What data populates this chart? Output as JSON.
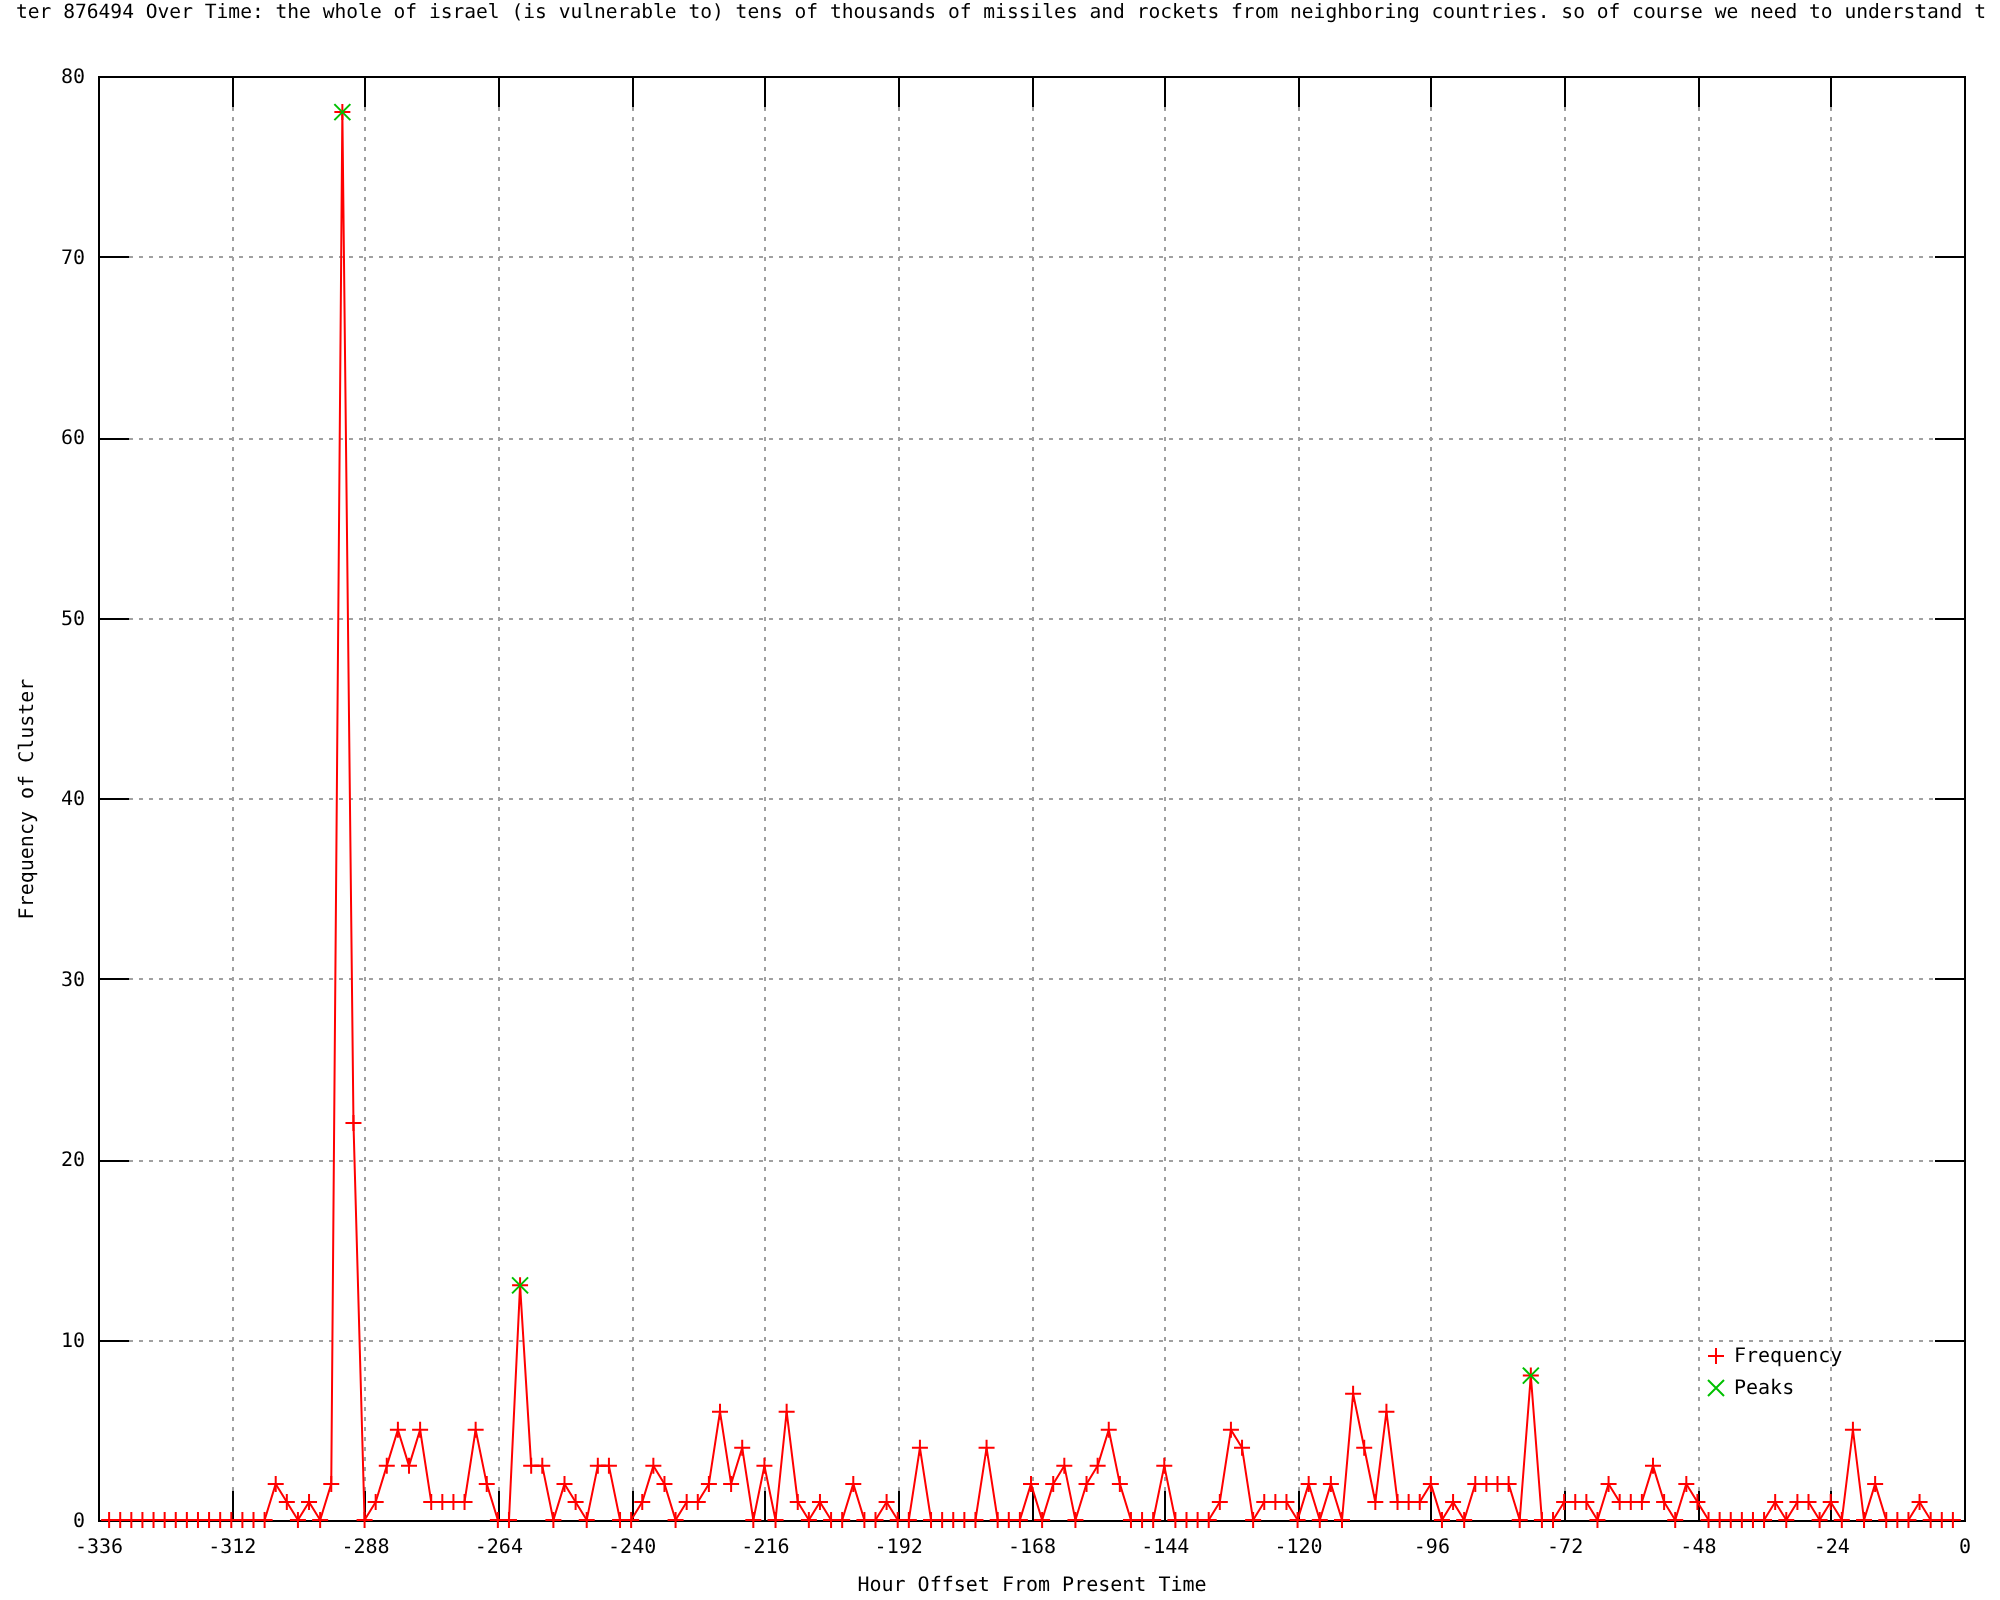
{
  "chart_data": {
    "type": "line",
    "title": "ter 876494 Over Time: the whole of israel (is vulnerable to) tens of thousands of missiles and rockets from neighboring countries. so of course we need to understand t",
    "xlabel": "Hour Offset From Present Time",
    "ylabel": "Frequency of Cluster",
    "x": [
      -334,
      -332,
      -330,
      -328,
      -326,
      -324,
      -322,
      -320,
      -318,
      -316,
      -314,
      -312,
      -310,
      -308,
      -306,
      -304,
      -302,
      -300,
      -298,
      -296,
      -294,
      -292,
      -290,
      -288,
      -286,
      -284,
      -282,
      -280,
      -278,
      -276,
      -274,
      -272,
      -270,
      -268,
      -266,
      -264,
      -262,
      -260,
      -258,
      -256,
      -254,
      -252,
      -250,
      -248,
      -246,
      -244,
      -242,
      -240,
      -238,
      -236,
      -234,
      -232,
      -230,
      -228,
      -226,
      -224,
      -222,
      -220,
      -218,
      -216,
      -214,
      -212,
      -210,
      -208,
      -206,
      -204,
      -202,
      -200,
      -198,
      -196,
      -194,
      -192,
      -190,
      -188,
      -186,
      -184,
      -182,
      -180,
      -178,
      -176,
      -174,
      -172,
      -170,
      -168,
      -166,
      -164,
      -162,
      -160,
      -158,
      -156,
      -154,
      -152,
      -150,
      -148,
      -146,
      -144,
      -142,
      -140,
      -138,
      -136,
      -134,
      -132,
      -130,
      -128,
      -126,
      -124,
      -122,
      -120,
      -118,
      -116,
      -114,
      -112,
      -110,
      -108,
      -106,
      -104,
      -102,
      -100,
      -98,
      -96,
      -94,
      -92,
      -90,
      -88,
      -86,
      -84,
      -82,
      -80,
      -78,
      -76,
      -74,
      -72,
      -70,
      -68,
      -66,
      -64,
      -62,
      -60,
      -58,
      -56,
      -54,
      -52,
      -50,
      -48,
      -46,
      -44,
      -42,
      -40,
      -38,
      -36,
      -34,
      -32,
      -30,
      -28,
      -26,
      -24,
      -22,
      -20,
      -18,
      -16,
      -14,
      -12,
      -10,
      -8,
      -6,
      -4,
      -2
    ],
    "series": [
      {
        "name": "Frequency",
        "color": "#ff0000",
        "values": [
          0,
          0,
          0,
          0,
          0,
          0,
          0,
          0,
          0,
          0,
          0,
          0,
          0,
          0,
          0,
          2,
          1,
          0,
          1,
          0,
          2,
          78,
          22,
          0,
          1,
          3,
          5,
          3,
          5,
          1,
          1,
          1,
          1,
          5,
          2,
          0,
          0,
          13,
          3,
          3,
          0,
          2,
          1,
          0,
          3,
          3,
          0,
          0,
          1,
          3,
          2,
          0,
          1,
          1,
          2,
          6,
          2,
          4,
          0,
          3,
          0,
          6,
          1,
          0,
          1,
          0,
          0,
          2,
          0,
          0,
          1,
          0,
          0,
          4,
          0,
          0,
          0,
          0,
          0,
          4,
          0,
          0,
          0,
          2,
          0,
          2,
          3,
          0,
          2,
          3,
          5,
          2,
          0,
          0,
          0,
          3,
          0,
          0,
          0,
          0,
          1,
          5,
          4,
          0,
          1,
          1,
          1,
          0,
          2,
          0,
          2,
          0,
          7,
          4,
          1,
          6,
          1,
          1,
          1,
          2,
          0,
          1,
          0,
          2,
          2,
          2,
          2,
          0,
          8,
          0,
          0,
          1,
          1,
          1,
          0,
          2,
          1,
          1,
          1,
          3,
          1,
          0,
          2,
          1,
          0,
          0,
          0,
          0,
          0,
          0,
          1,
          0,
          1,
          1,
          0,
          1,
          0,
          5,
          0,
          2,
          0,
          0,
          0,
          1,
          0,
          0,
          0
        ]
      },
      {
        "name": "Peaks",
        "type": "scatter",
        "color": "#00c000",
        "x": [
          -292,
          -260,
          -78
        ],
        "values": [
          78,
          13,
          8
        ]
      }
    ],
    "xlim": [
      -336,
      0
    ],
    "xticks": [
      -336,
      -312,
      -288,
      -264,
      -240,
      -216,
      -192,
      -168,
      -144,
      -120,
      -96,
      -72,
      -48,
      -24,
      0
    ],
    "ylim": [
      0,
      80
    ],
    "yticks": [
      0,
      10,
      20,
      30,
      40,
      50,
      60,
      70,
      80
    ],
    "grid": true,
    "legend": "bottom right",
    "marker": "cross"
  }
}
